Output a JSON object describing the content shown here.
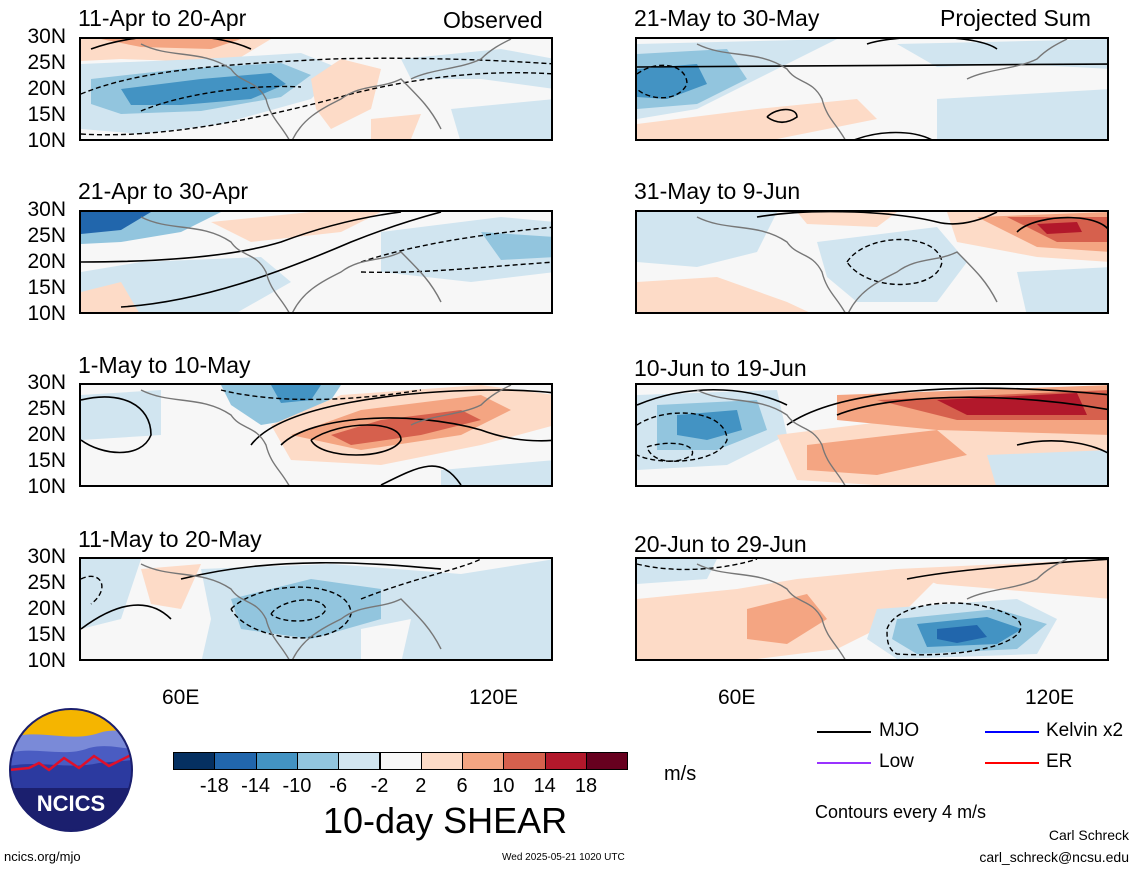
{
  "panels": [
    {
      "title": "11-Apr to 20-Apr",
      "tag": "Observed"
    },
    {
      "title": "21-Apr to 30-Apr",
      "tag": ""
    },
    {
      "title": "1-May to 10-May",
      "tag": ""
    },
    {
      "title": "11-May to 20-May",
      "tag": ""
    },
    {
      "title": "21-May to 30-May",
      "tag": "Projected Sum"
    },
    {
      "title": "31-May to 9-Jun",
      "tag": ""
    },
    {
      "title": "10-Jun to 19-Jun",
      "tag": ""
    },
    {
      "title": "20-Jun to 29-Jun",
      "tag": ""
    }
  ],
  "lat_labels": [
    "30N",
    "25N",
    "20N",
    "15N",
    "10N"
  ],
  "lon_labels": [
    "60E",
    "120E"
  ],
  "colorbar": {
    "title": "10-day SHEAR",
    "unit": "m/s",
    "labels": [
      "-18",
      "-14",
      "-10",
      "-6",
      "-2",
      "2",
      "6",
      "10",
      "14",
      "18"
    ],
    "colors": [
      "#053061",
      "#2166ac",
      "#4393c3",
      "#92c5de",
      "#d1e5f0",
      "#f7f7f7",
      "#fddbc7",
      "#f4a582",
      "#d6604d",
      "#b2182b",
      "#67001f"
    ]
  },
  "legend": {
    "items": [
      {
        "label": "MJO",
        "color": "#000000"
      },
      {
        "label": "Kelvin x2",
        "color": "#0000ff"
      },
      {
        "label": "Low",
        "color": "#9933ff"
      },
      {
        "label": "ER",
        "color": "#ff0000"
      }
    ],
    "note": "Contours every 4 m/s"
  },
  "logo": {
    "text": "NCICS"
  },
  "footer": {
    "left": "ncics.org/mjo",
    "center": "Wed 2025-05-21 1020 UTC",
    "author": "Carl Schreck",
    "email": "carl_schreck@ncsu.edu"
  }
}
